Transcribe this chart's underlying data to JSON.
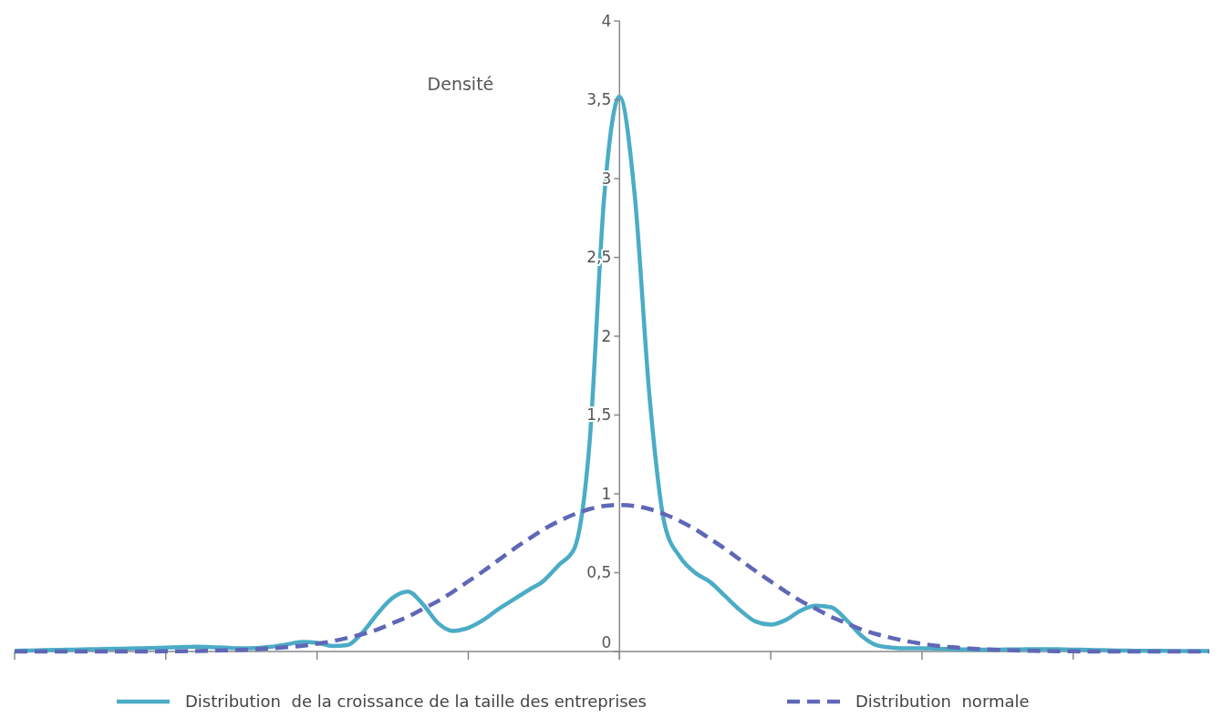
{
  "chart_data": {
    "type": "line",
    "ylabel": "Densité",
    "categories": [
      null,
      null,
      null,
      null,
      null,
      null,
      null,
      null,
      null,
      null,
      null,
      null,
      null,
      null,
      null,
      null,
      null,
      null,
      null,
      null,
      null,
      null,
      null,
      null,
      null,
      null,
      null,
      null,
      null,
      null,
      null,
      null,
      null,
      null,
      null,
      null,
      null,
      null,
      null,
      null,
      null,
      null,
      null,
      null,
      null,
      null,
      null,
      null,
      null,
      null,
      null,
      null,
      null,
      null,
      null,
      null,
      null,
      null,
      null,
      null,
      null,
      null,
      null,
      null,
      null,
      null,
      null,
      null,
      null,
      null,
      null,
      null,
      null,
      null,
      null,
      null,
      null,
      null,
      null,
      null
    ],
    "series": [
      {
        "name": "Distribution  de la croissance de la taille des entreprises",
        "color": "#4bacc6",
        "line_style": "solid",
        "values": [
          0.005,
          0.006,
          0.008,
          0.01,
          0.012,
          0.014,
          0.016,
          0.018,
          0.02,
          0.022,
          0.025,
          0.028,
          0.03,
          0.028,
          0.024,
          0.02,
          0.022,
          0.03,
          0.045,
          0.06,
          0.055,
          0.035,
          0.04,
          0.12,
          0.24,
          0.34,
          0.38,
          0.3,
          0.18,
          0.13,
          0.15,
          0.2,
          0.27,
          0.33,
          0.39,
          0.45,
          0.55,
          0.65,
          1.3,
          2.9,
          3.52,
          2.9,
          1.6,
          0.8,
          0.6,
          0.5,
          0.44,
          0.35,
          0.26,
          0.19,
          0.17,
          0.2,
          0.26,
          0.29,
          0.28,
          0.2,
          0.1,
          0.04,
          0.025,
          0.02,
          0.02,
          0.018,
          0.015,
          0.013,
          0.012,
          0.012,
          0.013,
          0.014,
          0.015,
          0.014,
          0.012,
          0.01,
          0.008,
          0.006,
          0.005,
          0.004,
          0.004,
          0.003,
          0.003,
          0.003
        ]
      },
      {
        "name": "Distribution  normale",
        "color": "#5f67b6",
        "line_style": "dashed",
        "values": [
          0,
          0,
          0,
          0,
          0,
          0,
          0,
          0,
          0,
          0,
          0.001,
          0.002,
          0.003,
          0.005,
          0.007,
          0.01,
          0.014,
          0.02,
          0.027,
          0.036,
          0.049,
          0.065,
          0.086,
          0.11,
          0.14,
          0.18,
          0.22,
          0.27,
          0.32,
          0.38,
          0.445,
          0.51,
          0.58,
          0.65,
          0.714,
          0.776,
          0.827,
          0.87,
          0.903,
          0.923,
          0.93,
          0.923,
          0.903,
          0.87,
          0.827,
          0.776,
          0.714,
          0.65,
          0.58,
          0.51,
          0.445,
          0.38,
          0.32,
          0.27,
          0.22,
          0.18,
          0.14,
          0.11,
          0.086,
          0.065,
          0.049,
          0.036,
          0.027,
          0.02,
          0.014,
          0.01,
          0.007,
          0.005,
          0.003,
          0.002,
          0.001,
          0,
          0,
          0,
          0,
          0,
          0,
          0,
          0,
          0
        ]
      }
    ],
    "ylim": [
      0,
      4
    ],
    "yticks": [
      0,
      {
        "value": 0.5,
        "label": "0,5"
      },
      1,
      {
        "value": 1.5,
        "label": "1,5"
      },
      2,
      {
        "value": 2.5,
        "label": "2,5"
      },
      3,
      {
        "value": 3.5,
        "label": "3,5"
      },
      4
    ],
    "grid": false,
    "legend": "bottom"
  }
}
